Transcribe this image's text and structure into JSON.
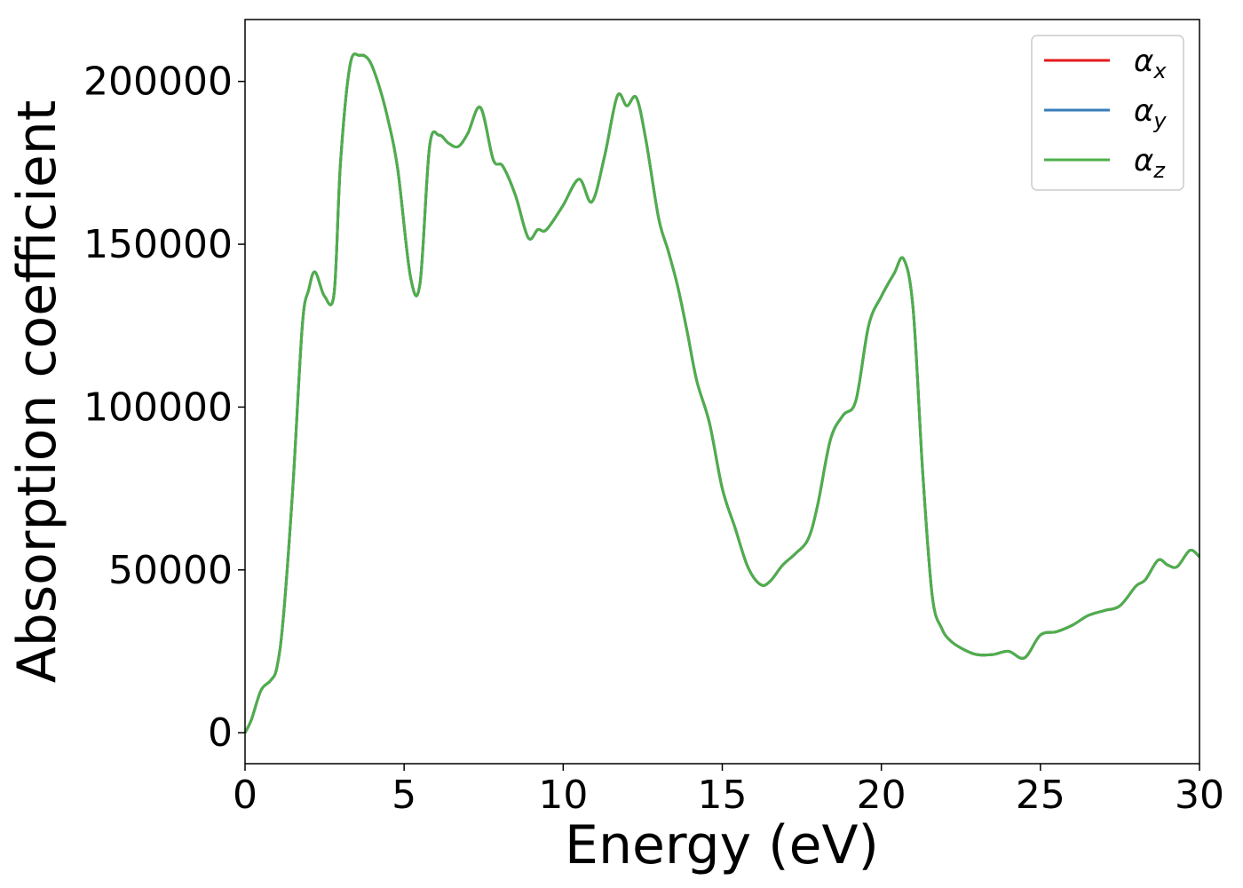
{
  "chart_data": {
    "type": "line",
    "xlabel": "Energy (eV)",
    "ylabel": "Absorption coefficient",
    "xlim": [
      0,
      30
    ],
    "ylim": [
      -9500,
      219000
    ],
    "xticks": [
      0,
      5,
      10,
      15,
      20,
      25,
      30
    ],
    "yticks": [
      0,
      50000,
      100000,
      150000,
      200000
    ],
    "xtick_labels": [
      "0",
      "5",
      "10",
      "15",
      "20",
      "25",
      "30"
    ],
    "ytick_labels": [
      "0",
      "50000",
      "100000",
      "150000",
      "200000"
    ],
    "grid": false,
    "legend_position": "top-right",
    "series": [
      {
        "name": "α",
        "subscript": "x",
        "color": "#e41a1c",
        "x": [
          0,
          0.2,
          0.5,
          0.8,
          1.0,
          1.2,
          1.5,
          1.8,
          2.0,
          2.2,
          2.5,
          2.8,
          3.0,
          3.3,
          3.6,
          3.9,
          4.2,
          4.5,
          4.8,
          5.2,
          5.5,
          5.8,
          6.1,
          6.4,
          6.7,
          7.0,
          7.4,
          7.8,
          8.1,
          8.5,
          8.9,
          9.2,
          9.4,
          9.6,
          10.0,
          10.5,
          10.9,
          11.3,
          11.7,
          12.0,
          12.3,
          12.6,
          13.0,
          13.3,
          13.6,
          13.9,
          14.2,
          14.6,
          15.0,
          15.4,
          15.8,
          16.2,
          16.5,
          16.9,
          17.3,
          17.7,
          18.0,
          18.4,
          18.8,
          19.2,
          19.6,
          20.0,
          20.4,
          20.7,
          21.0,
          21.3,
          21.6,
          21.9,
          22.2,
          22.6,
          23.0,
          23.5,
          24.0,
          24.5,
          25.0,
          25.5,
          26.0,
          26.5,
          27.0,
          27.5,
          28.0,
          28.3,
          28.7,
          29.0,
          29.3,
          29.7,
          30.0
        ],
        "values": [
          0,
          4000,
          13000,
          16000,
          20000,
          35000,
          75000,
          125000,
          136000,
          141500,
          134000,
          135000,
          175000,
          205000,
          208000,
          206500,
          199000,
          188000,
          173000,
          140000,
          138000,
          180000,
          183500,
          181000,
          180000,
          184000,
          192000,
          176000,
          174000,
          165000,
          152000,
          154500,
          154000,
          156000,
          162000,
          170000,
          163000,
          177000,
          195500,
          192500,
          195000,
          182000,
          158000,
          148000,
          137000,
          123000,
          108000,
          95000,
          75000,
          63000,
          51000,
          45500,
          46500,
          51500,
          55000,
          59500,
          70000,
          90000,
          97500,
          102000,
          125000,
          134000,
          141000,
          145500,
          130000,
          80000,
          42000,
          32000,
          28000,
          25500,
          24000,
          24000,
          25000,
          23000,
          30000,
          31000,
          33000,
          36000,
          37500,
          39000,
          45000,
          47000,
          53000,
          51500,
          51000,
          56000,
          54000
        ]
      },
      {
        "name": "α",
        "subscript": "y",
        "color": "#377eb8",
        "x": [
          0,
          0.2,
          0.5,
          0.8,
          1.0,
          1.2,
          1.5,
          1.8,
          2.0,
          2.2,
          2.5,
          2.8,
          3.0,
          3.3,
          3.6,
          3.9,
          4.2,
          4.5,
          4.8,
          5.2,
          5.5,
          5.8,
          6.1,
          6.4,
          6.7,
          7.0,
          7.4,
          7.8,
          8.1,
          8.5,
          8.9,
          9.2,
          9.4,
          9.6,
          10.0,
          10.5,
          10.9,
          11.3,
          11.7,
          12.0,
          12.3,
          12.6,
          13.0,
          13.3,
          13.6,
          13.9,
          14.2,
          14.6,
          15.0,
          15.4,
          15.8,
          16.2,
          16.5,
          16.9,
          17.3,
          17.7,
          18.0,
          18.4,
          18.8,
          19.2,
          19.6,
          20.0,
          20.4,
          20.7,
          21.0,
          21.3,
          21.6,
          21.9,
          22.2,
          22.6,
          23.0,
          23.5,
          24.0,
          24.5,
          25.0,
          25.5,
          26.0,
          26.5,
          27.0,
          27.5,
          28.0,
          28.3,
          28.7,
          29.0,
          29.3,
          29.7,
          30.0
        ],
        "values": [
          0,
          4000,
          13000,
          16000,
          20000,
          35000,
          75000,
          125000,
          136000,
          141500,
          134000,
          135000,
          175000,
          205000,
          208000,
          206500,
          199000,
          188000,
          173000,
          140000,
          138000,
          180000,
          183500,
          181000,
          180000,
          184000,
          192000,
          176000,
          174000,
          165000,
          152000,
          154500,
          154000,
          156000,
          162000,
          170000,
          163000,
          177000,
          195500,
          192500,
          195000,
          182000,
          158000,
          148000,
          137000,
          123000,
          108000,
          95000,
          75000,
          63000,
          51000,
          45500,
          46500,
          51500,
          55000,
          59500,
          70000,
          90000,
          97500,
          102000,
          125000,
          134000,
          141000,
          145500,
          130000,
          80000,
          42000,
          32000,
          28000,
          25500,
          24000,
          24000,
          25000,
          23000,
          30000,
          31000,
          33000,
          36000,
          37500,
          39000,
          45000,
          47000,
          53000,
          51500,
          51000,
          56000,
          54000
        ]
      },
      {
        "name": "α",
        "subscript": "z",
        "color": "#4daf4a",
        "x": [
          0,
          0.2,
          0.5,
          0.8,
          1.0,
          1.2,
          1.5,
          1.8,
          2.0,
          2.2,
          2.5,
          2.8,
          3.0,
          3.3,
          3.6,
          3.9,
          4.2,
          4.5,
          4.8,
          5.2,
          5.5,
          5.8,
          6.1,
          6.4,
          6.7,
          7.0,
          7.4,
          7.8,
          8.1,
          8.5,
          8.9,
          9.2,
          9.4,
          9.6,
          10.0,
          10.5,
          10.9,
          11.3,
          11.7,
          12.0,
          12.3,
          12.6,
          13.0,
          13.3,
          13.6,
          13.9,
          14.2,
          14.6,
          15.0,
          15.4,
          15.8,
          16.2,
          16.5,
          16.9,
          17.3,
          17.7,
          18.0,
          18.4,
          18.8,
          19.2,
          19.6,
          20.0,
          20.4,
          20.7,
          21.0,
          21.3,
          21.6,
          21.9,
          22.2,
          22.6,
          23.0,
          23.5,
          24.0,
          24.5,
          25.0,
          25.5,
          26.0,
          26.5,
          27.0,
          27.5,
          28.0,
          28.3,
          28.7,
          29.0,
          29.3,
          29.7,
          30.0
        ],
        "values": [
          0,
          4000,
          13000,
          16000,
          20000,
          35000,
          75000,
          125000,
          136000,
          141500,
          134000,
          135000,
          175000,
          205000,
          208000,
          206500,
          199000,
          188000,
          173000,
          140000,
          138000,
          180000,
          183500,
          181000,
          180000,
          184000,
          192000,
          176000,
          174000,
          165000,
          152000,
          154500,
          154000,
          156000,
          162000,
          170000,
          163000,
          177000,
          195500,
          192500,
          195000,
          182000,
          158000,
          148000,
          137000,
          123000,
          108000,
          95000,
          75000,
          63000,
          51000,
          45500,
          46500,
          51500,
          55000,
          59500,
          70000,
          90000,
          97500,
          102000,
          125000,
          134000,
          141000,
          145500,
          130000,
          80000,
          42000,
          32000,
          28000,
          25500,
          24000,
          24000,
          25000,
          23000,
          30000,
          31000,
          33000,
          36000,
          37500,
          39000,
          45000,
          47000,
          53000,
          51500,
          51000,
          56000,
          54000
        ]
      }
    ]
  }
}
